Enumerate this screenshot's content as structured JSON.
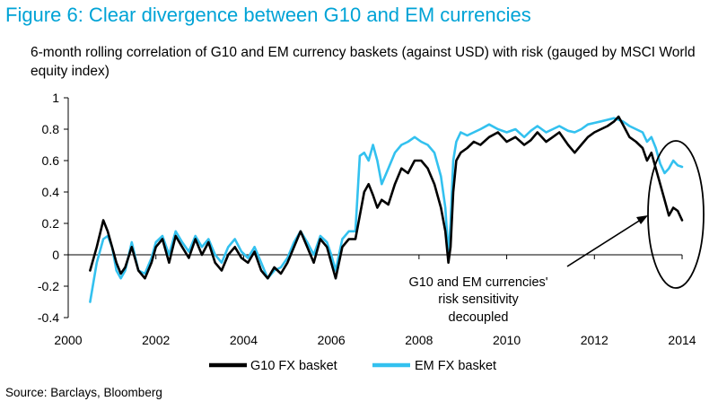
{
  "title": "Figure 6: Clear divergence between G10 and EM currencies",
  "subtitle": "6-month rolling correlation of  G10 and EM currency baskets (against USD) with risk (gauged by MSCI World equity index)",
  "source": "Source: Barclays, Bloomberg",
  "colors": {
    "title": "#00a3d6",
    "g10": "#000000",
    "em": "#33c1ef"
  },
  "chart_data": {
    "type": "line",
    "title": "",
    "xlabel": "",
    "ylabel": "",
    "xlim": [
      2000,
      2014
    ],
    "ylim": [
      -0.4,
      1
    ],
    "grid": false,
    "legend": "bottom",
    "x_ticks": [
      "2000",
      "2002",
      "2004",
      "2006",
      "2008",
      "2010",
      "2012",
      "2014"
    ],
    "y_ticks": [
      "-0.4",
      "-0.2",
      "0",
      "0.2",
      "0.4",
      "0.6",
      "0.8",
      "1"
    ],
    "annotation": [
      "G10 and EM currencies'",
      "risk sensitivity",
      "decoupled"
    ],
    "series": [
      {
        "name": "G10 FX basket",
        "color": "#000000",
        "x": [
          2000.5,
          2000.65,
          2000.8,
          2000.9,
          2001.0,
          2001.1,
          2001.2,
          2001.3,
          2001.45,
          2001.6,
          2001.75,
          2001.9,
          2002.0,
          2002.15,
          2002.3,
          2002.45,
          2002.6,
          2002.75,
          2002.9,
          2003.05,
          2003.2,
          2003.35,
          2003.5,
          2003.65,
          2003.8,
          2003.95,
          2004.1,
          2004.25,
          2004.4,
          2004.55,
          2004.7,
          2004.85,
          2005.0,
          2005.15,
          2005.3,
          2005.45,
          2005.6,
          2005.75,
          2005.9,
          2006.0,
          2006.1,
          2006.25,
          2006.4,
          2006.55,
          2006.65,
          2006.75,
          2006.85,
          2006.95,
          2007.05,
          2007.15,
          2007.3,
          2007.45,
          2007.6,
          2007.75,
          2007.9,
          2008.05,
          2008.2,
          2008.35,
          2008.5,
          2008.6,
          2008.67,
          2008.72,
          2008.78,
          2008.85,
          2008.95,
          2009.1,
          2009.25,
          2009.4,
          2009.6,
          2009.8,
          2010.0,
          2010.2,
          2010.4,
          2010.55,
          2010.7,
          2010.9,
          2011.05,
          2011.2,
          2011.4,
          2011.55,
          2011.7,
          2011.85,
          2012.0,
          2012.15,
          2012.3,
          2012.45,
          2012.55,
          2012.65,
          2012.8,
          2012.95,
          2013.1,
          2013.2,
          2013.3,
          2013.4,
          2013.5,
          2013.6,
          2013.7,
          2013.8,
          2013.9,
          2014.0
        ],
        "values": [
          -0.1,
          0.05,
          0.22,
          0.15,
          0.05,
          -0.05,
          -0.12,
          -0.08,
          0.05,
          -0.1,
          -0.15,
          -0.05,
          0.05,
          0.1,
          -0.05,
          0.12,
          0.05,
          -0.02,
          0.1,
          0.0,
          0.08,
          -0.05,
          -0.1,
          0.0,
          0.05,
          -0.02,
          -0.05,
          0.02,
          -0.1,
          -0.15,
          -0.08,
          -0.12,
          -0.05,
          0.05,
          0.15,
          0.05,
          -0.05,
          0.1,
          0.05,
          -0.05,
          -0.15,
          0.05,
          0.1,
          0.1,
          0.25,
          0.4,
          0.45,
          0.38,
          0.3,
          0.35,
          0.32,
          0.45,
          0.55,
          0.52,
          0.6,
          0.6,
          0.55,
          0.45,
          0.3,
          0.15,
          -0.05,
          0.05,
          0.4,
          0.6,
          0.65,
          0.68,
          0.72,
          0.7,
          0.75,
          0.78,
          0.72,
          0.75,
          0.7,
          0.73,
          0.78,
          0.72,
          0.75,
          0.78,
          0.7,
          0.65,
          0.7,
          0.75,
          0.78,
          0.8,
          0.82,
          0.85,
          0.88,
          0.83,
          0.75,
          0.72,
          0.68,
          0.6,
          0.65,
          0.55,
          0.45,
          0.35,
          0.25,
          0.3,
          0.28,
          0.22
        ]
      },
      {
        "name": "EM FX basket",
        "color": "#33c1ef",
        "x": [
          2000.5,
          2000.65,
          2000.8,
          2000.9,
          2001.0,
          2001.1,
          2001.2,
          2001.3,
          2001.45,
          2001.6,
          2001.75,
          2001.9,
          2002.0,
          2002.15,
          2002.3,
          2002.45,
          2002.6,
          2002.75,
          2002.9,
          2003.05,
          2003.2,
          2003.35,
          2003.5,
          2003.65,
          2003.8,
          2003.95,
          2004.1,
          2004.25,
          2004.4,
          2004.55,
          2004.7,
          2004.85,
          2005.0,
          2005.15,
          2005.3,
          2005.45,
          2005.6,
          2005.75,
          2005.9,
          2006.0,
          2006.1,
          2006.25,
          2006.4,
          2006.55,
          2006.65,
          2006.75,
          2006.85,
          2006.95,
          2007.05,
          2007.15,
          2007.3,
          2007.45,
          2007.6,
          2007.75,
          2007.9,
          2008.05,
          2008.2,
          2008.35,
          2008.5,
          2008.6,
          2008.67,
          2008.72,
          2008.78,
          2008.85,
          2008.95,
          2009.1,
          2009.25,
          2009.4,
          2009.6,
          2009.8,
          2010.0,
          2010.2,
          2010.4,
          2010.55,
          2010.7,
          2010.9,
          2011.05,
          2011.2,
          2011.4,
          2011.55,
          2011.7,
          2011.85,
          2012.0,
          2012.15,
          2012.3,
          2012.45,
          2012.55,
          2012.65,
          2012.8,
          2012.95,
          2013.1,
          2013.2,
          2013.3,
          2013.4,
          2013.5,
          2013.6,
          2013.7,
          2013.8,
          2013.9,
          2014.0
        ],
        "values": [
          -0.3,
          -0.05,
          0.1,
          0.12,
          0.05,
          -0.1,
          -0.15,
          -0.1,
          0.08,
          -0.1,
          -0.12,
          -0.02,
          0.08,
          0.12,
          0.0,
          0.15,
          0.08,
          0.02,
          0.12,
          0.05,
          0.1,
          0.0,
          -0.05,
          0.05,
          0.1,
          0.02,
          -0.02,
          0.05,
          -0.05,
          -0.15,
          -0.1,
          -0.08,
          -0.02,
          0.08,
          0.15,
          0.08,
          0.0,
          0.12,
          0.08,
          0.0,
          -0.1,
          0.1,
          0.15,
          0.15,
          0.63,
          0.65,
          0.6,
          0.7,
          0.6,
          0.45,
          0.55,
          0.65,
          0.7,
          0.72,
          0.75,
          0.72,
          0.7,
          0.65,
          0.5,
          0.3,
          0.0,
          0.2,
          0.6,
          0.72,
          0.78,
          0.76,
          0.78,
          0.8,
          0.83,
          0.8,
          0.78,
          0.8,
          0.75,
          0.79,
          0.82,
          0.78,
          0.8,
          0.82,
          0.79,
          0.78,
          0.8,
          0.83,
          0.84,
          0.85,
          0.86,
          0.87,
          0.86,
          0.85,
          0.82,
          0.8,
          0.78,
          0.72,
          0.75,
          0.68,
          0.58,
          0.52,
          0.55,
          0.6,
          0.57,
          0.56
        ]
      }
    ]
  }
}
